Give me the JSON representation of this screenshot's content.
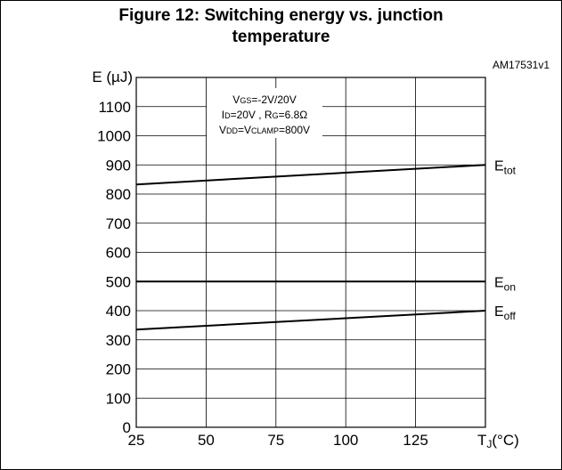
{
  "figure": {
    "title_line1": "Figure 12: Switching energy vs. junction",
    "title_line2": "temperature",
    "reference": "AM17531v1"
  },
  "chart_data": {
    "type": "line",
    "xlabel_main": "T",
    "xlabel_sub": "J",
    "xlabel_unit": "(°C)",
    "ylabel": "E (µJ)",
    "xlim": [
      25,
      150
    ],
    "ylim": [
      0,
      1200
    ],
    "x_ticks": [
      25,
      50,
      75,
      100,
      125
    ],
    "y_ticks": [
      0,
      100,
      200,
      300,
      400,
      500,
      600,
      700,
      800,
      900,
      1000,
      1100
    ],
    "grid": true,
    "conditions": [
      {
        "parts": [
          {
            "t": "V"
          },
          {
            "t": "GS",
            "sub": true
          },
          {
            "t": "=-2V/20V"
          }
        ]
      },
      {
        "parts": [
          {
            "t": "I"
          },
          {
            "t": "D",
            "sub": true
          },
          {
            "t": "=20V , R"
          },
          {
            "t": "G",
            "sub": true
          },
          {
            "t": "=6.8Ω"
          }
        ]
      },
      {
        "parts": [
          {
            "t": "V"
          },
          {
            "t": "DD",
            "sub": true
          },
          {
            "t": "=V"
          },
          {
            "t": "CLAMP",
            "sub": true
          },
          {
            "t": "=800V"
          }
        ]
      }
    ],
    "series": [
      {
        "name": "E",
        "name_sub": "tot",
        "x": [
          25,
          150
        ],
        "y": [
          833,
          900
        ],
        "color": "#000000"
      },
      {
        "name": "E",
        "name_sub": "on",
        "x": [
          25,
          150
        ],
        "y": [
          500,
          500
        ],
        "color": "#000000"
      },
      {
        "name": "E",
        "name_sub": "off",
        "x": [
          25,
          150
        ],
        "y": [
          335,
          400
        ],
        "color": "#000000"
      }
    ]
  }
}
